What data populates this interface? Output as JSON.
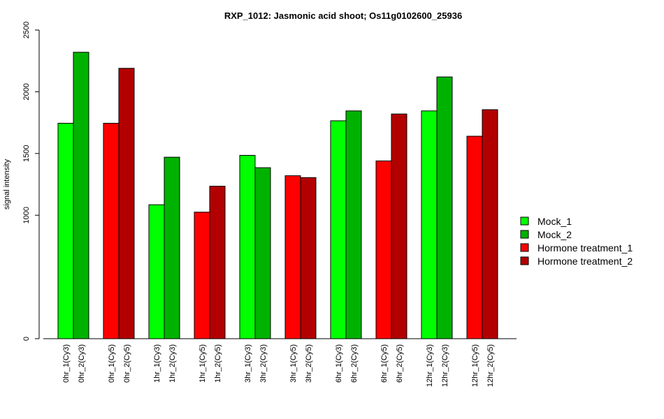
{
  "chart_data": {
    "type": "bar",
    "title": "RXP_1012: Jasmonic acid shoot; Os11g0102600_25936",
    "xlabel": "",
    "ylabel": "signal intensity",
    "ylim": [
      0,
      2500
    ],
    "yticks": [
      0,
      1000,
      1500,
      2000,
      2500
    ],
    "grid": false,
    "legend_position": "right",
    "categories": [
      "0hr_1(Cy3)",
      "0hr_2(Cy3)",
      "0hr_1(Cy5)",
      "0hr_2(Cy5)",
      "1hr_1(Cy3)",
      "1hr_2(Cy3)",
      "1hr_1(Cy5)",
      "1hr_2(Cy5)",
      "3hr_1(Cy3)",
      "3hr_2(Cy3)",
      "3hr_1(Cy5)",
      "3hr_2(Cy5)",
      "6hr_1(Cy3)",
      "6hr_2(Cy3)",
      "6hr_1(Cy5)",
      "6hr_2(Cy5)",
      "12hr_1(Cy3)",
      "12hr_2(Cy3)",
      "12hr_1(Cy5)",
      "12hr_2(Cy5)"
    ],
    "values": [
      1745,
      2320,
      1745,
      2190,
      1085,
      1470,
      1025,
      1235,
      1485,
      1385,
      1320,
      1305,
      1765,
      1845,
      1440,
      1820,
      1845,
      2120,
      1640,
      1855
    ],
    "bar_series": [
      "Mock_1",
      "Mock_2",
      "Hormone treatment_1",
      "Hormone treatment_2",
      "Mock_1",
      "Mock_2",
      "Hormone treatment_1",
      "Hormone treatment_2",
      "Mock_1",
      "Mock_2",
      "Hormone treatment_1",
      "Hormone treatment_2",
      "Mock_1",
      "Mock_2",
      "Hormone treatment_1",
      "Hormone treatment_2",
      "Mock_1",
      "Mock_2",
      "Hormone treatment_1",
      "Hormone treatment_2"
    ],
    "series": [
      {
        "name": "Mock_1",
        "color": "#00ff00"
      },
      {
        "name": "Mock_2",
        "color": "#00b200"
      },
      {
        "name": "Hormone treatment_1",
        "color": "#ff0000"
      },
      {
        "name": "Hormone treatment_2",
        "color": "#b20000"
      }
    ]
  }
}
